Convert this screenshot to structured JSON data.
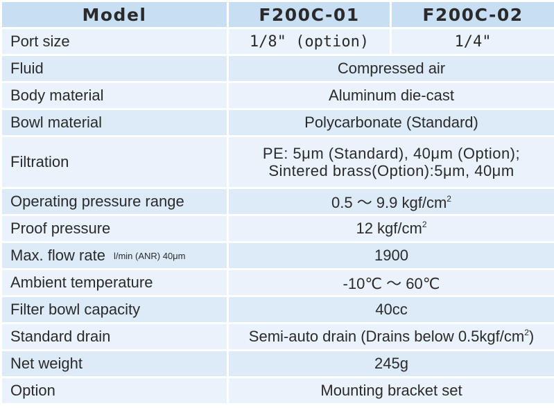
{
  "header": {
    "model": "Model",
    "col1": "F200C-01",
    "col2": "F200C-02"
  },
  "rows": {
    "port_size": {
      "label": "Port size",
      "col1": "1/8\" (option)",
      "col2": "1/4\""
    },
    "fluid": {
      "label": "Fluid",
      "value": "Compressed air"
    },
    "body_material": {
      "label": "Body material",
      "value": "Aluminum die-cast"
    },
    "bowl_material": {
      "label": "Bowl material",
      "value": "Polycarbonate (Standard)"
    },
    "filtration": {
      "label": "Filtration",
      "line1": "PE: 5μm (Standard), 40μm (Option);",
      "line2": "Sintered brass(Option):5μm, 40μm"
    },
    "operating_pressure": {
      "label": "Operating pressure range",
      "value": "0.5 ～ 9.9 kgf/cm",
      "sup": "2"
    },
    "proof_pressure": {
      "label": "Proof pressure",
      "value": "12 kgf/cm",
      "sup": "2"
    },
    "max_flow": {
      "label": "Max. flow rate",
      "note": "l/min (ANR) 40μm",
      "value": "1900"
    },
    "ambient_temp": {
      "label": "Ambient temperature",
      "value": "-10℃ ～ 60℃"
    },
    "bowl_capacity": {
      "label": "Filter bowl capacity",
      "value": "40cc"
    },
    "standard_drain": {
      "label": "Standard drain",
      "value": "Semi-auto drain (Drains below 0.5kgf/cm",
      "sup": "2",
      "suffix": ")"
    },
    "net_weight": {
      "label": "Net weight",
      "value": "245g"
    },
    "option": {
      "label": "Option",
      "value": "Mounting bracket set"
    }
  }
}
